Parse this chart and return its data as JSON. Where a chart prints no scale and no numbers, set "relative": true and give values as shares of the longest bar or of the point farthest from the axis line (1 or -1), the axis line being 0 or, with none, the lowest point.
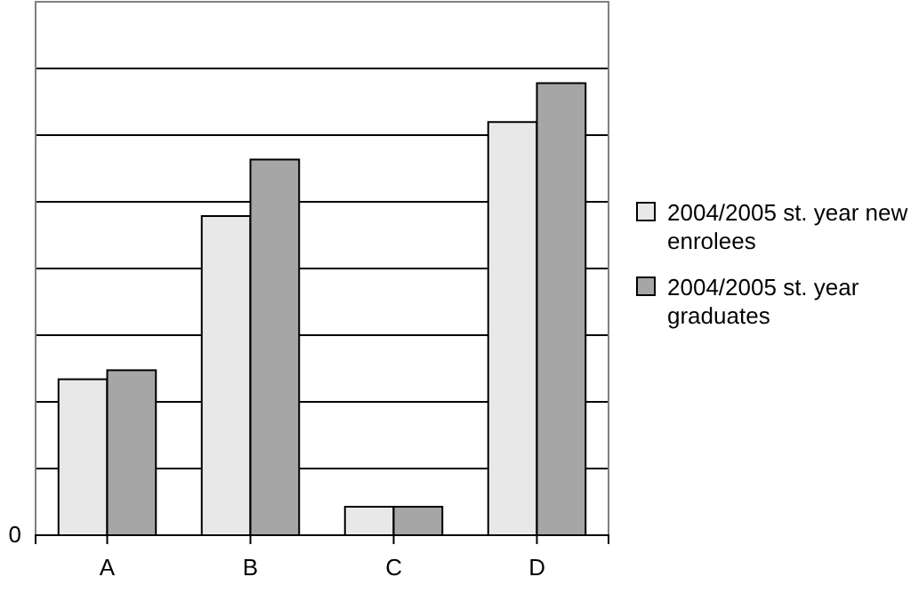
{
  "chart_data": {
    "type": "bar",
    "relative": true,
    "categories": [
      "A",
      "B",
      "C",
      "D"
    ],
    "series": [
      {
        "name": "2004/2005 st. year new enrolees",
        "color": "#e8e8e8",
        "values": [
          0.345,
          0.706,
          0.063,
          0.914
        ]
      },
      {
        "name": "2004/2005 st. year graduates",
        "color": "#a6a6a6",
        "values": [
          0.365,
          0.831,
          0.063,
          1
        ]
      }
    ],
    "annotations": [
      "0"
    ],
    "grid": true,
    "legend": "right"
  }
}
